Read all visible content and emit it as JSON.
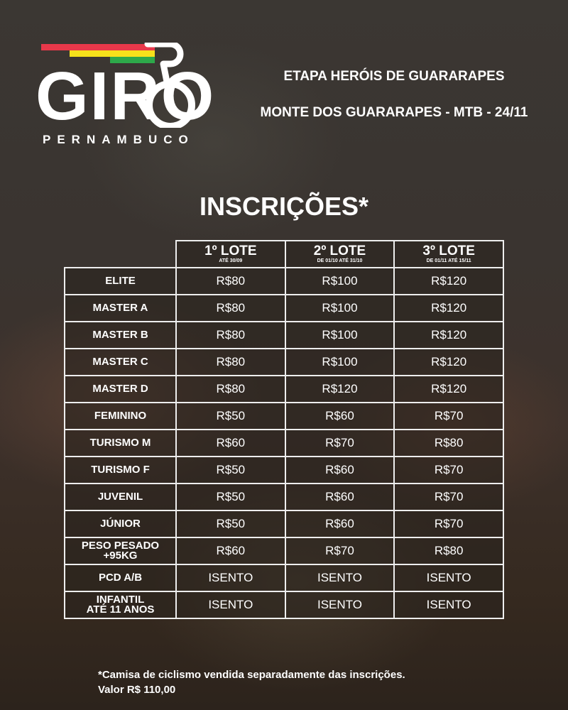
{
  "logo": {
    "name": "GIRO",
    "subtitle": "PERNAMBUCO",
    "colors": [
      "#e8384a",
      "#f5e11b",
      "#2da94a"
    ]
  },
  "event": {
    "line1": "ETAPA HERÓIS DE GUARARAPES",
    "line2": "MONTE DOS GUARARAPES - MTB - 24/11"
  },
  "title": "INSCRIÇÕES*",
  "lotes": [
    {
      "label": "1º LOTE",
      "dates": "ATÉ 30/09"
    },
    {
      "label": "2º LOTE",
      "dates": "DE 01/10 ATÉ 31/10"
    },
    {
      "label": "3º LOTE",
      "dates": "DE 01/11 ATÉ 15/11"
    }
  ],
  "rows": [
    {
      "category": "ELITE",
      "prices": [
        "R$80",
        "R$100",
        "R$120"
      ]
    },
    {
      "category": "MASTER A",
      "prices": [
        "R$80",
        "R$100",
        "R$120"
      ]
    },
    {
      "category": "MASTER B",
      "prices": [
        "R$80",
        "R$100",
        "R$120"
      ]
    },
    {
      "category": "MASTER C",
      "prices": [
        "R$80",
        "R$100",
        "R$120"
      ]
    },
    {
      "category": "MASTER D",
      "prices": [
        "R$80",
        "R$120",
        "R$120"
      ]
    },
    {
      "category": "FEMININO",
      "prices": [
        "R$50",
        "R$60",
        "R$70"
      ]
    },
    {
      "category": "TURISMO M",
      "prices": [
        "R$60",
        "R$70",
        "R$80"
      ]
    },
    {
      "category": "TURISMO F",
      "prices": [
        "R$50",
        "R$60",
        "R$70"
      ]
    },
    {
      "category": "JUVENIL",
      "prices": [
        "R$50",
        "R$60",
        "R$70"
      ]
    },
    {
      "category": "JÚNIOR",
      "prices": [
        "R$50",
        "R$60",
        "R$70"
      ]
    },
    {
      "category": "PESO PESADO\n+95KG",
      "prices": [
        "R$60",
        "R$70",
        "R$80"
      ]
    },
    {
      "category": "PCD A/B",
      "prices": [
        "ISENTO",
        "ISENTO",
        "ISENTO"
      ]
    },
    {
      "category": "INFANTIL\nATÉ 11 ANOS",
      "prices": [
        "ISENTO",
        "ISENTO",
        "ISENTO"
      ]
    }
  ],
  "note": {
    "line1": "*Camisa de ciclismo vendida separadamente das inscrições.",
    "line2": "Valor R$ 110,00"
  }
}
